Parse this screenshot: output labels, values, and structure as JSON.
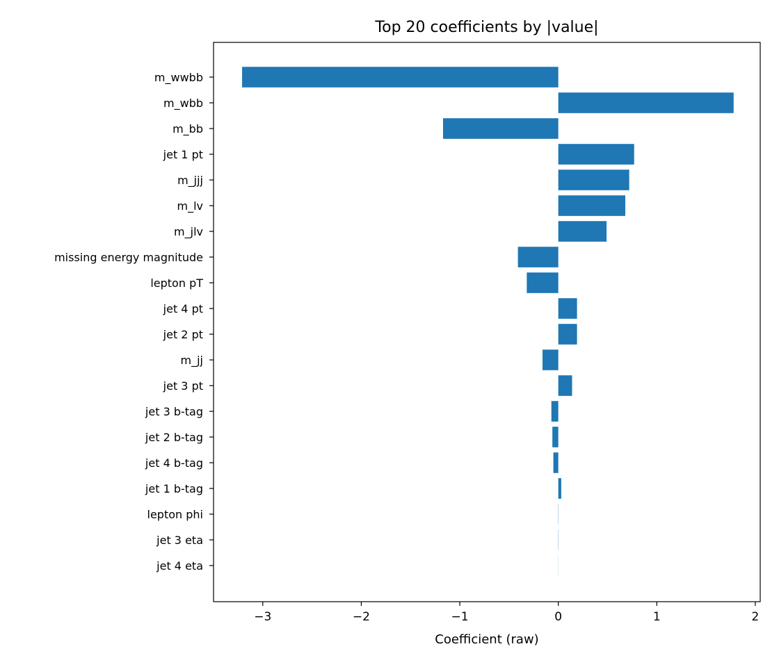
{
  "chart_data": {
    "type": "bar",
    "orientation": "horizontal",
    "title": "Top 20 coefficients by |value|",
    "xlabel": "Coefficient (raw)",
    "ylabel": "",
    "xlim": [
      -3.5,
      2.05
    ],
    "xticks": [
      -3,
      -2,
      -1,
      0,
      1,
      2
    ],
    "xtick_labels": [
      "−3",
      "−2",
      "−1",
      "0",
      "1",
      "2"
    ],
    "grid": false,
    "bar_color": "#1f77b4",
    "categories": [
      "m_wwbb",
      "m_wbb",
      "m_bb",
      "jet 1 pt",
      "m_jjj",
      "m_lv",
      "m_jlv",
      "missing energy magnitude",
      "lepton pT",
      "jet 4 pt",
      "jet 2 pt",
      "m_jj",
      "jet 3 pt",
      "jet 3 b-tag",
      "jet 2 b-tag",
      "jet 4 b-tag",
      "jet 1 b-tag",
      "lepton phi",
      "jet 3 eta",
      "jet 4 eta"
    ],
    "values": [
      -3.21,
      1.78,
      -1.17,
      0.77,
      0.72,
      0.68,
      0.49,
      -0.41,
      -0.32,
      0.19,
      0.19,
      -0.16,
      0.14,
      -0.07,
      -0.06,
      -0.05,
      0.03,
      0.002,
      0.002,
      0.001
    ]
  }
}
